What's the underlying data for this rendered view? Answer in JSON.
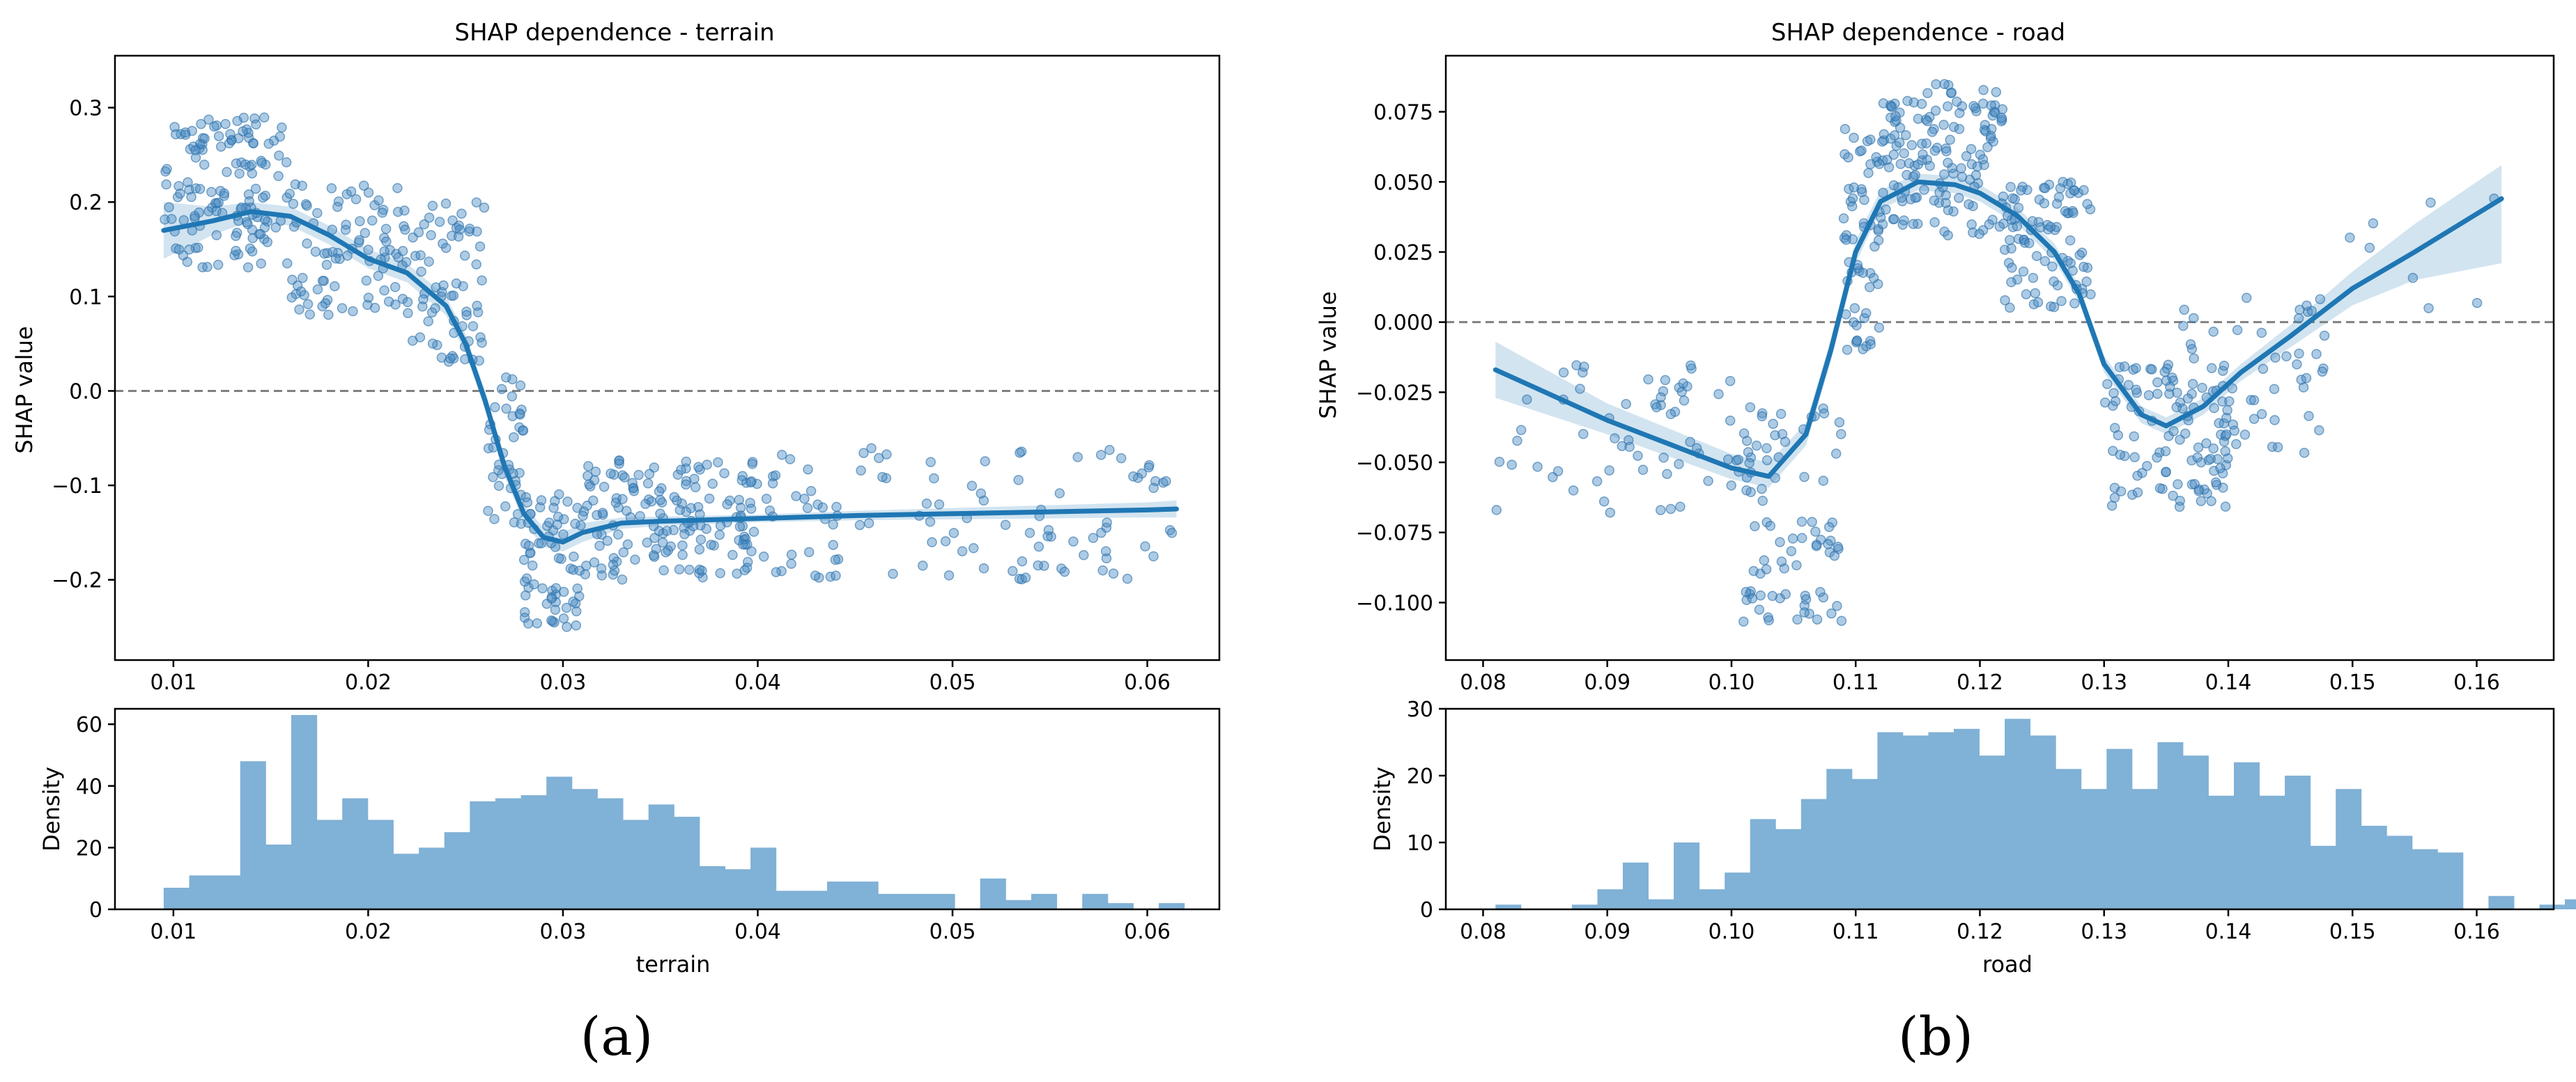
{
  "chart_data": [
    {
      "type": "scatter",
      "panel_label": "(a)",
      "title": "SHAP dependence - terrain",
      "xlabel": "",
      "ylabel": "SHAP value",
      "xlim": [
        0.007,
        0.0637
      ],
      "ylim": [
        -0.285,
        0.355
      ],
      "xticks": [
        0.01,
        0.02,
        0.03,
        0.04,
        0.05,
        0.06
      ],
      "xtick_labels": [
        "0.01",
        "0.02",
        "0.03",
        "0.04",
        "0.05",
        "0.06"
      ],
      "yticks": [
        -0.2,
        -0.1,
        0.0,
        0.1,
        0.2,
        0.3
      ],
      "ytick_labels": [
        "−0.2",
        "−0.1",
        "0.0",
        "0.1",
        "0.2",
        "0.3"
      ],
      "reference_line_y": 0.0,
      "grid": false,
      "point_color": "#4a8bc4",
      "line_color": "#1f77b4",
      "smooth_curve": {
        "x": [
          0.0095,
          0.012,
          0.014,
          0.016,
          0.018,
          0.02,
          0.022,
          0.024,
          0.025,
          0.026,
          0.027,
          0.028,
          0.029,
          0.03,
          0.031,
          0.033,
          0.035,
          0.04,
          0.045,
          0.05,
          0.055,
          0.06,
          0.0615
        ],
        "y": [
          0.17,
          0.18,
          0.19,
          0.185,
          0.165,
          0.14,
          0.125,
          0.09,
          0.05,
          -0.01,
          -0.08,
          -0.13,
          -0.155,
          -0.16,
          -0.15,
          -0.14,
          -0.138,
          -0.135,
          -0.132,
          -0.13,
          -0.128,
          -0.126,
          -0.125
        ]
      },
      "confidence_band": {
        "x": [
          0.0095,
          0.012,
          0.014,
          0.016,
          0.018,
          0.02,
          0.022,
          0.024,
          0.025,
          0.026,
          0.027,
          0.028,
          0.029,
          0.03,
          0.031,
          0.033,
          0.035,
          0.04,
          0.045,
          0.05,
          0.055,
          0.06,
          0.0615
        ],
        "lower": [
          0.14,
          0.165,
          0.18,
          0.175,
          0.155,
          0.13,
          0.115,
          0.08,
          0.04,
          -0.02,
          -0.09,
          -0.14,
          -0.165,
          -0.17,
          -0.16,
          -0.146,
          -0.143,
          -0.139,
          -0.137,
          -0.136,
          -0.135,
          -0.134,
          -0.134
        ],
        "upper": [
          0.2,
          0.195,
          0.2,
          0.195,
          0.175,
          0.15,
          0.135,
          0.1,
          0.06,
          0.0,
          -0.07,
          -0.12,
          -0.145,
          -0.15,
          -0.14,
          -0.134,
          -0.133,
          -0.131,
          -0.127,
          -0.124,
          -0.121,
          -0.118,
          -0.116
        ]
      },
      "scatter_clusters": [
        {
          "x": [
            0.0095,
            0.016
          ],
          "y": [
            0.13,
            0.29
          ],
          "n": 140
        },
        {
          "x": [
            0.016,
            0.022
          ],
          "y": [
            0.08,
            0.22
          ],
          "n": 90
        },
        {
          "x": [
            0.022,
            0.026
          ],
          "y": [
            0.03,
            0.2
          ],
          "n": 70
        },
        {
          "x": [
            0.026,
            0.028
          ],
          "y": [
            -0.15,
            0.02
          ],
          "n": 40
        },
        {
          "x": [
            0.028,
            0.031
          ],
          "y": [
            -0.25,
            -0.1
          ],
          "n": 70
        },
        {
          "x": [
            0.031,
            0.04
          ],
          "y": [
            -0.2,
            -0.07
          ],
          "n": 160
        },
        {
          "x": [
            0.04,
            0.0615
          ],
          "y": [
            -0.2,
            -0.06
          ],
          "n": 110
        }
      ],
      "histogram": {
        "ylabel": "Density",
        "xlabel": "terrain",
        "ylim": [
          0,
          65
        ],
        "yticks": [
          0,
          20,
          40,
          60
        ],
        "ytick_labels": [
          "0",
          "20",
          "40",
          "60"
        ],
        "bin_start": 0.0095,
        "bin_width": 0.00131,
        "values": [
          7,
          11,
          11,
          48,
          21,
          63,
          29,
          36,
          29,
          18,
          20,
          25,
          35,
          36,
          37,
          43,
          39,
          36,
          29,
          34,
          30,
          14,
          13,
          20,
          6,
          6,
          9,
          9,
          5,
          5,
          5,
          0,
          10,
          3,
          5,
          0,
          5,
          2,
          0,
          2
        ],
        "color": "#80b1d6"
      }
    },
    {
      "type": "scatter",
      "panel_label": "(b)",
      "title": "SHAP dependence - road",
      "xlabel": "",
      "ylabel": "SHAP value",
      "xlim": [
        0.077,
        0.1662
      ],
      "ylim": [
        -0.1205,
        0.095
      ],
      "xticks": [
        0.08,
        0.09,
        0.1,
        0.11,
        0.12,
        0.13,
        0.14,
        0.15,
        0.16
      ],
      "xtick_labels": [
        "0.08",
        "0.09",
        "0.10",
        "0.11",
        "0.12",
        "0.13",
        "0.14",
        "0.15",
        "0.16"
      ],
      "yticks": [
        -0.1,
        -0.075,
        -0.05,
        -0.025,
        0.0,
        0.025,
        0.05,
        0.075
      ],
      "ytick_labels": [
        "−0.100",
        "−0.075",
        "−0.050",
        "−0.025",
        "0.000",
        "0.025",
        "0.050",
        "0.075"
      ],
      "reference_line_y": 0.0,
      "grid": false,
      "point_color": "#4a8bc4",
      "line_color": "#1f77b4",
      "smooth_curve": {
        "x": [
          0.081,
          0.09,
          0.1,
          0.103,
          0.106,
          0.108,
          0.11,
          0.112,
          0.115,
          0.118,
          0.12,
          0.123,
          0.126,
          0.128,
          0.13,
          0.133,
          0.135,
          0.138,
          0.141,
          0.145,
          0.15,
          0.155,
          0.162
        ],
        "y": [
          -0.017,
          -0.035,
          -0.052,
          -0.055,
          -0.04,
          -0.01,
          0.025,
          0.043,
          0.05,
          0.049,
          0.046,
          0.038,
          0.025,
          0.01,
          -0.015,
          -0.033,
          -0.037,
          -0.03,
          -0.018,
          -0.005,
          0.012,
          0.025,
          0.044
        ]
      },
      "confidence_band": {
        "x": [
          0.081,
          0.09,
          0.1,
          0.103,
          0.106,
          0.108,
          0.11,
          0.112,
          0.115,
          0.118,
          0.12,
          0.123,
          0.126,
          0.128,
          0.13,
          0.133,
          0.135,
          0.138,
          0.141,
          0.145,
          0.15,
          0.155,
          0.162
        ],
        "lower": [
          -0.027,
          -0.04,
          -0.056,
          -0.059,
          -0.044,
          -0.014,
          0.021,
          0.04,
          0.047,
          0.046,
          0.043,
          0.035,
          0.022,
          0.007,
          -0.018,
          -0.036,
          -0.04,
          -0.033,
          -0.021,
          -0.009,
          0.006,
          0.015,
          0.021
        ],
        "upper": [
          -0.007,
          -0.029,
          -0.047,
          -0.05,
          -0.036,
          -0.006,
          0.029,
          0.047,
          0.053,
          0.052,
          0.049,
          0.041,
          0.028,
          0.013,
          -0.012,
          -0.03,
          -0.034,
          -0.027,
          -0.015,
          -0.001,
          0.018,
          0.035,
          0.056
        ]
      },
      "scatter_clusters": [
        {
          "x": [
            0.081,
            0.1
          ],
          "y": [
            -0.068,
            -0.01
          ],
          "n": 60
        },
        {
          "x": [
            0.1,
            0.109
          ],
          "y": [
            -0.107,
            -0.03
          ],
          "n": 90
        },
        {
          "x": [
            0.109,
            0.112
          ],
          "y": [
            -0.01,
            0.07
          ],
          "n": 60
        },
        {
          "x": [
            0.112,
            0.122
          ],
          "y": [
            0.03,
            0.085
          ],
          "n": 150
        },
        {
          "x": [
            0.122,
            0.129
          ],
          "y": [
            0.005,
            0.05
          ],
          "n": 90
        },
        {
          "x": [
            0.13,
            0.14
          ],
          "y": [
            -0.066,
            -0.015
          ],
          "n": 110
        },
        {
          "x": [
            0.136,
            0.148
          ],
          "y": [
            -0.05,
            0.01
          ],
          "n": 50
        },
        {
          "x": [
            0.148,
            0.162
          ],
          "y": [
            0.0,
            0.048
          ],
          "n": 8
        }
      ],
      "histogram": {
        "ylabel": "Density",
        "xlabel": "road",
        "ylim": [
          0,
          30
        ],
        "yticks": [
          0,
          10,
          20,
          30
        ],
        "ytick_labels": [
          "0",
          "10",
          "20",
          "30"
        ],
        "bin_start": 0.081,
        "bin_width": 0.00205,
        "values": [
          0.7,
          0,
          0,
          0.7,
          3,
          7,
          1.5,
          10,
          3,
          5.5,
          13.5,
          12,
          16.5,
          21,
          19.5,
          26.5,
          26,
          26.5,
          27,
          23,
          28.5,
          26,
          21,
          18,
          24,
          18,
          25,
          23,
          17,
          22,
          17,
          20,
          9.5,
          18,
          12.5,
          11,
          9,
          8.5,
          0,
          2,
          0,
          0.7,
          1.5,
          0,
          0.7
        ],
        "color": "#80b1d6"
      }
    }
  ],
  "panel_labels": {
    "a": "(a)",
    "b": "(b)"
  }
}
